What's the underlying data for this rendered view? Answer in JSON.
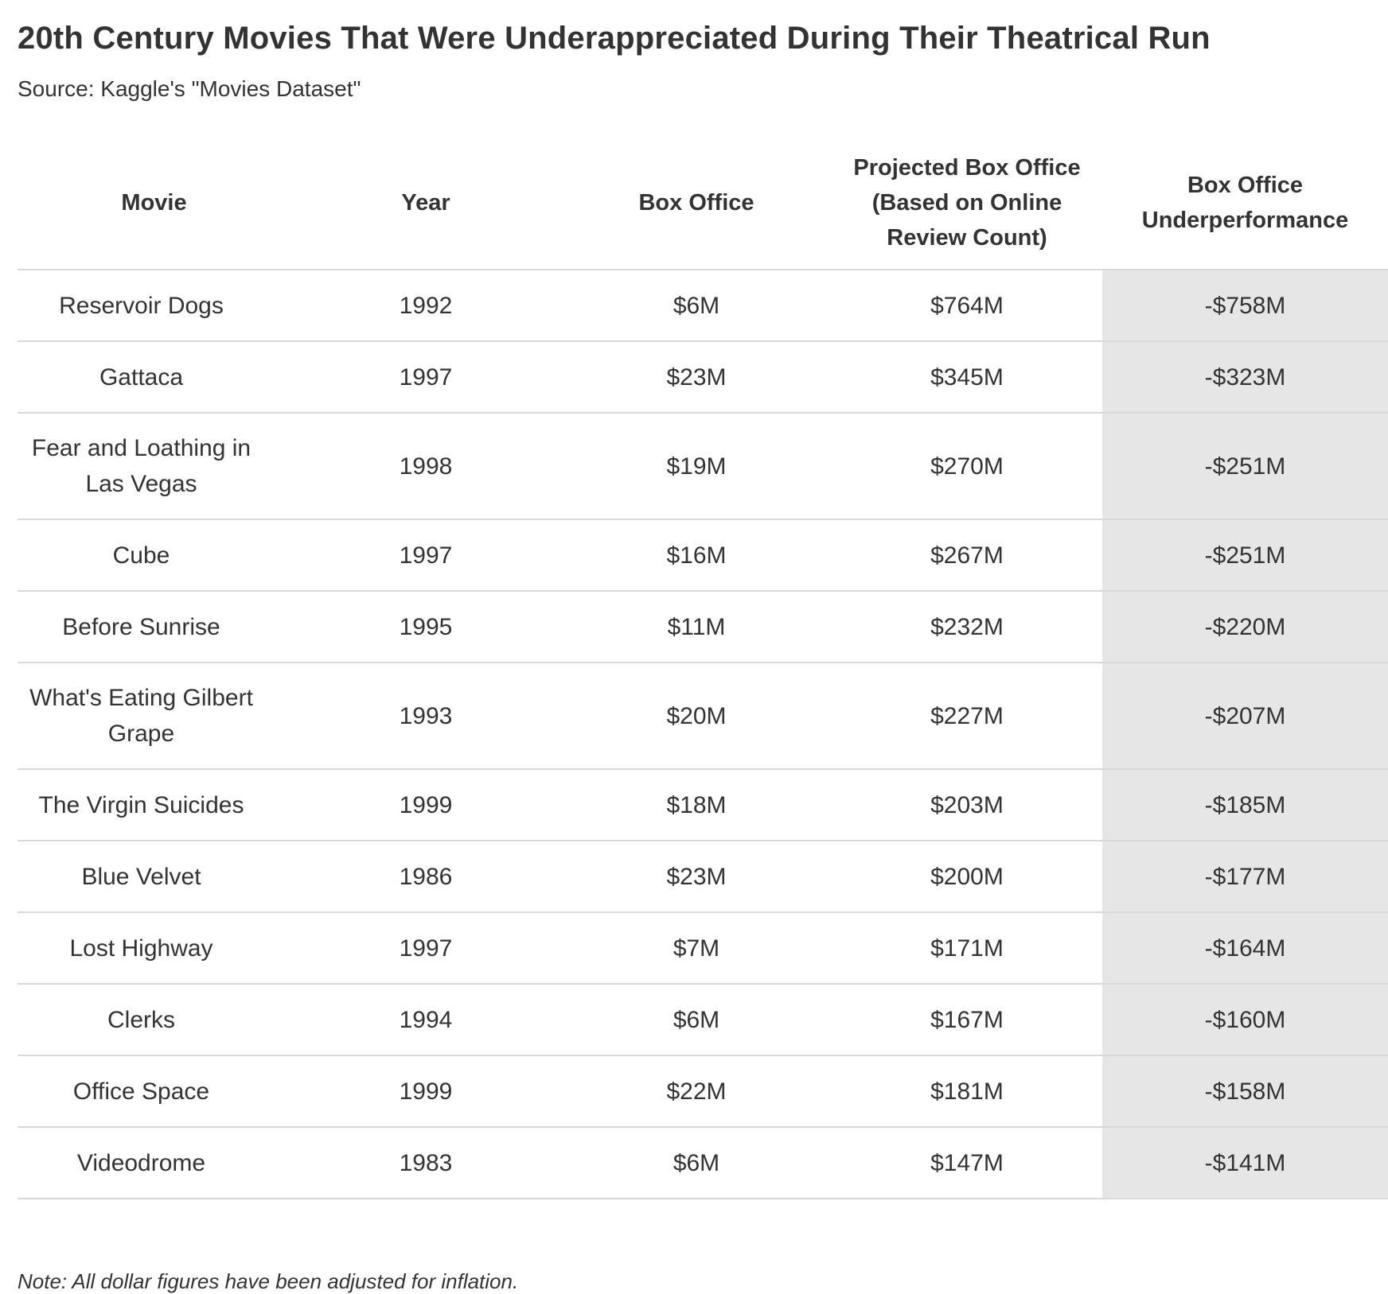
{
  "header": {
    "title": "20th Century Movies That Were Underappreciated During Their Theatrical Run",
    "subtitle": "Source: Kaggle's \"Movies Dataset\""
  },
  "footer": {
    "note": "Note: All dollar figures have been adjusted for inflation."
  },
  "colors": {
    "text": "#333333",
    "highlight_column": "#e6e6e6",
    "row_divider": "#d9d9d9"
  },
  "chart_data": {
    "type": "table",
    "title": "20th Century Movies That Were Underappreciated During Their Theatrical Run",
    "subtitle": "Source: Kaggle's \"Movies Dataset\"",
    "columns": [
      "Movie",
      "Year",
      "Box Office",
      "Projected Box Office (Based on Online Review Count)",
      "Box Office Underperformance"
    ],
    "highlighted_column": "Box Office Underperformance",
    "rows": [
      {
        "movie": "Reservoir Dogs",
        "year": "1992",
        "box_office": "$6M",
        "projected": "$764M",
        "underperformance": "-$758M"
      },
      {
        "movie": "Gattaca",
        "year": "1997",
        "box_office": "$23M",
        "projected": "$345M",
        "underperformance": "-$323M"
      },
      {
        "movie": "Fear and Loathing in Las Vegas",
        "year": "1998",
        "box_office": "$19M",
        "projected": "$270M",
        "underperformance": "-$251M"
      },
      {
        "movie": "Cube",
        "year": "1997",
        "box_office": "$16M",
        "projected": "$267M",
        "underperformance": "-$251M"
      },
      {
        "movie": "Before Sunrise",
        "year": "1995",
        "box_office": "$11M",
        "projected": "$232M",
        "underperformance": "-$220M"
      },
      {
        "movie": "What's Eating Gilbert Grape",
        "year": "1993",
        "box_office": "$20M",
        "projected": "$227M",
        "underperformance": "-$207M"
      },
      {
        "movie": "The Virgin Suicides",
        "year": "1999",
        "box_office": "$18M",
        "projected": "$203M",
        "underperformance": "-$185M"
      },
      {
        "movie": "Blue Velvet",
        "year": "1986",
        "box_office": "$23M",
        "projected": "$200M",
        "underperformance": "-$177M"
      },
      {
        "movie": "Lost Highway",
        "year": "1997",
        "box_office": "$7M",
        "projected": "$171M",
        "underperformance": "-$164M"
      },
      {
        "movie": "Clerks",
        "year": "1994",
        "box_office": "$6M",
        "projected": "$167M",
        "underperformance": "-$160M"
      },
      {
        "movie": "Office Space",
        "year": "1999",
        "box_office": "$22M",
        "projected": "$181M",
        "underperformance": "-$158M"
      },
      {
        "movie": "Videodrome",
        "year": "1983",
        "box_office": "$6M",
        "projected": "$147M",
        "underperformance": "-$141M"
      }
    ]
  }
}
